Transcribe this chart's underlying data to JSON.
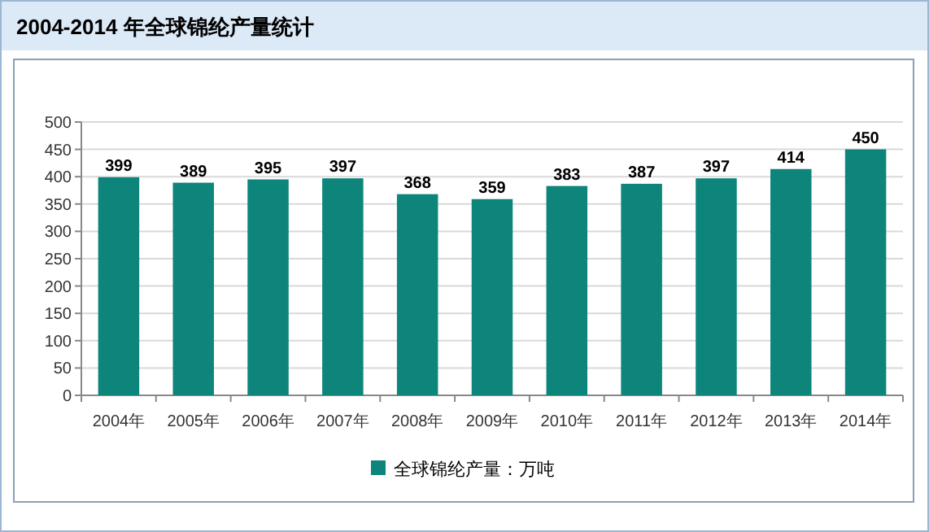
{
  "chart_data": {
    "type": "bar",
    "title": "2004-2014 年全球锦纶产量统计",
    "categories": [
      "2004年",
      "2005年",
      "2006年",
      "2007年",
      "2008年",
      "2009年",
      "2010年",
      "2011年",
      "2012年",
      "2013年",
      "2014年"
    ],
    "series": [
      {
        "name": "全球锦纶产量：万吨",
        "color": "#0e857a",
        "values": [
          399,
          389,
          395,
          397,
          368,
          359,
          383,
          387,
          397,
          414,
          450
        ]
      }
    ],
    "ylim": [
      0,
      500
    ],
    "yticks": [
      0,
      50,
      100,
      150,
      200,
      250,
      300,
      350,
      400,
      450,
      500
    ],
    "grid": "y",
    "data_labels": true,
    "legend": "bottom"
  }
}
